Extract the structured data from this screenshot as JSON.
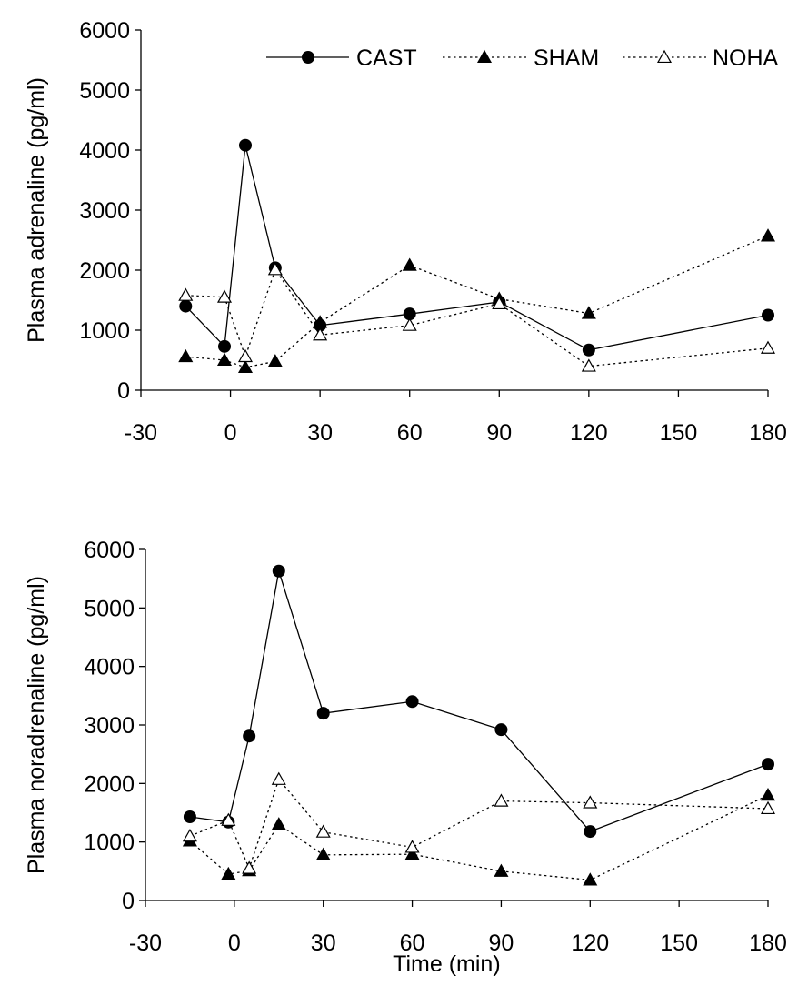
{
  "chart_data": [
    {
      "type": "line",
      "title": "",
      "xlabel": "",
      "ylabel": "Plasma adrenaline (pg/ml)",
      "xlim": [
        -30,
        180
      ],
      "ylim": [
        0,
        6000
      ],
      "xticks": [
        -30,
        0,
        30,
        60,
        90,
        120,
        150,
        180
      ],
      "yticks": [
        0,
        1000,
        2000,
        3000,
        4000,
        5000,
        6000
      ],
      "grid": false,
      "legend": "top-right",
      "series": [
        {
          "name": "CAST",
          "marker": "filled-circle",
          "line": "solid",
          "x": [
            -15,
            -2,
            5,
            15,
            30,
            60,
            90,
            120,
            180
          ],
          "y": [
            1400,
            730,
            4080,
            2040,
            1080,
            1270,
            1470,
            670,
            1250
          ]
        },
        {
          "name": "SHAM",
          "marker": "filled-triangle",
          "line": "dotted",
          "x": [
            -15,
            -2,
            5,
            15,
            30,
            60,
            90,
            120,
            180
          ],
          "y": [
            560,
            500,
            380,
            480,
            1130,
            2080,
            1520,
            1280,
            2570
          ]
        },
        {
          "name": "NOHA",
          "marker": "open-triangle",
          "line": "dotted",
          "x": [
            -15,
            -2,
            5,
            15,
            30,
            60,
            90,
            120,
            180
          ],
          "y": [
            1580,
            1550,
            560,
            2010,
            920,
            1080,
            1440,
            400,
            700
          ]
        }
      ]
    },
    {
      "type": "line",
      "title": "",
      "xlabel": "Time (min)",
      "ylabel": "Plasma noradrenaline (pg/ml)",
      "xlim": [
        -30,
        180
      ],
      "ylim": [
        0,
        6000
      ],
      "xticks": [
        -30,
        0,
        30,
        60,
        90,
        120,
        150,
        180
      ],
      "yticks": [
        0,
        1000,
        2000,
        3000,
        4000,
        5000,
        6000
      ],
      "grid": false,
      "legend": "none",
      "series": [
        {
          "name": "CAST",
          "marker": "filled-circle",
          "line": "solid",
          "x": [
            -15,
            -2,
            5,
            15,
            30,
            60,
            90,
            120,
            180
          ],
          "y": [
            1430,
            1340,
            2810,
            5630,
            3200,
            3400,
            2920,
            1180,
            2330
          ]
        },
        {
          "name": "SHAM",
          "marker": "filled-triangle",
          "line": "dotted",
          "x": [
            -15,
            -2,
            5,
            15,
            30,
            60,
            90,
            120,
            180
          ],
          "y": [
            1020,
            450,
            510,
            1300,
            780,
            790,
            500,
            350,
            1800
          ]
        },
        {
          "name": "NOHA",
          "marker": "open-triangle",
          "line": "dotted",
          "x": [
            -15,
            -2,
            5,
            15,
            30,
            60,
            90,
            120,
            180
          ],
          "y": [
            1100,
            1370,
            550,
            2070,
            1170,
            910,
            1700,
            1670,
            1570
          ]
        }
      ]
    }
  ]
}
